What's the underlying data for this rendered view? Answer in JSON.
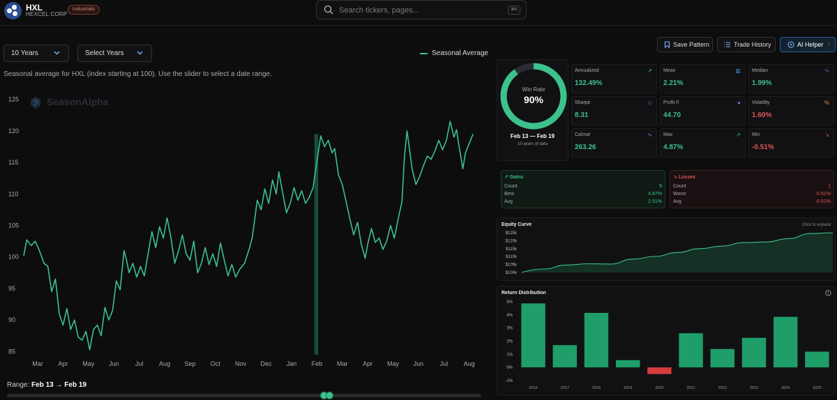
{
  "header": {
    "ticker": "HXL",
    "company": "HEXCEL CORP",
    "sector_badge": "Industrials",
    "search_placeholder": "Search tickers, pages...",
    "shortcut": "⌘K"
  },
  "controls": {
    "period_select": "10 Years",
    "years_select": "Select Years",
    "legend_label": "Seasonal Average",
    "description": "Seasonal average for HXL (index starting at 100). Use the slider to select a date range.",
    "watermark": "SeasonAlpha",
    "range_label": "Range:",
    "range_value": "Feb 13 → Feb 19"
  },
  "toolbar": {
    "save_pattern": "Save Pattern",
    "trade_history": "Trade History",
    "ai_helper": "AI Helper"
  },
  "win_rate": {
    "label": "Win Rate",
    "value": "90%",
    "fraction": 0.9,
    "range": "Feb 13 — Feb 19",
    "sub": "10 years of data"
  },
  "stats": [
    {
      "name": "Annualized",
      "value": "132.49%",
      "tone": "g",
      "icon": "trend-up-icon",
      "glyph": "↗",
      "color": "#3cc28c"
    },
    {
      "name": "Mean",
      "value": "2.21%",
      "tone": "g",
      "icon": "bar-chart-icon",
      "glyph": "▥",
      "color": "#4a90d9"
    },
    {
      "name": "Median",
      "value": "1.99%",
      "tone": "g",
      "icon": "pulse-icon",
      "glyph": "∿",
      "color": "#4a90d9"
    },
    {
      "name": "Sharpe",
      "value": "8.31",
      "tone": "g",
      "icon": "shield-icon",
      "glyph": "◇",
      "color": "#4a90d9"
    },
    {
      "name": "Profit F.",
      "value": "44.70",
      "tone": "g",
      "icon": "dot-icon",
      "glyph": "●",
      "color": "#9b59b6"
    },
    {
      "name": "Volatility",
      "value": "1.60%",
      "tone": "r",
      "icon": "percent-icon",
      "glyph": "%",
      "color": "#e08a3c"
    },
    {
      "name": "Calmar",
      "value": "263.26",
      "tone": "g",
      "icon": "activity-icon",
      "glyph": "∿",
      "color": "#4a90d9"
    },
    {
      "name": "Max",
      "value": "4.87%",
      "tone": "g",
      "icon": "trend-up-icon",
      "glyph": "↗",
      "color": "#3cc28c"
    },
    {
      "name": "Min",
      "value": "-0.51%",
      "tone": "r",
      "icon": "trend-down-icon",
      "glyph": "↘",
      "color": "#e05555"
    }
  ],
  "gains": {
    "title": "Gains",
    "rows": [
      {
        "label": "Count",
        "value": "9"
      },
      {
        "label": "Best",
        "value": "4.87%"
      },
      {
        "label": "Avg",
        "value": "2.51%"
      }
    ]
  },
  "losses": {
    "title": "Losses",
    "rows": [
      {
        "label": "Count",
        "value": "1"
      },
      {
        "label": "Worst",
        "value": "-0.51%"
      },
      {
        "label": "Avg",
        "value": "-0.51%"
      }
    ]
  },
  "equity": {
    "title": "Equity Curve",
    "hint": "Click to expand",
    "y_ticks": [
      "$125k",
      "$120k",
      "$115k",
      "$110k",
      "$105k",
      "$100k"
    ],
    "y_min": 100000,
    "y_max": 125000,
    "values": [
      100000,
      102200,
      104700,
      105500,
      105300,
      108400,
      110100,
      112600,
      115000,
      116600,
      118800,
      119200,
      121300,
      124500,
      125000
    ]
  },
  "distribution": {
    "title": "Return Distribution",
    "y_ticks": [
      "5%",
      "4%",
      "3%",
      "2%",
      "1%",
      "0%",
      "-1%"
    ],
    "y_min": -1,
    "y_max": 5,
    "years": [
      "2016",
      "2017",
      "2018",
      "2019",
      "2020",
      "2021",
      "2022",
      "2023",
      "2024",
      "2025"
    ],
    "values": [
      4.87,
      1.7,
      4.15,
      0.55,
      -0.51,
      2.6,
      1.4,
      2.25,
      3.85,
      1.2
    ]
  },
  "chart_data": {
    "type": "line",
    "title": "",
    "series_name": "Seasonal Average",
    "xlabel": "",
    "ylabel": "",
    "x_ticks": [
      "Mar",
      "Apr",
      "May",
      "Jun",
      "Jul",
      "Aug",
      "Sep",
      "Oct",
      "Nov",
      "Dec",
      "Jan",
      "Feb",
      "Mar",
      "Apr",
      "May",
      "Jun",
      "Jul",
      "Aug"
    ],
    "y_ticks": [
      125,
      120,
      115,
      110,
      105,
      100,
      95,
      90,
      85
    ],
    "ylim": [
      84.5,
      125.5
    ],
    "x_range": [
      0,
      17.75
    ],
    "highlight": {
      "from": 11.45,
      "to": 11.6,
      "label": "Feb 13 - Feb 19"
    },
    "points": [
      [
        0,
        100.2
      ],
      [
        0.12,
        102.7
      ],
      [
        0.3,
        101.8
      ],
      [
        0.45,
        102.5
      ],
      [
        0.6,
        101.2
      ],
      [
        0.8,
        99.0
      ],
      [
        0.95,
        98.5
      ],
      [
        1.1,
        94.5
      ],
      [
        1.25,
        96.5
      ],
      [
        1.4,
        91.0
      ],
      [
        1.55,
        89.2
      ],
      [
        1.7,
        91.8
      ],
      [
        1.85,
        88.5
      ],
      [
        2.0,
        90.0
      ],
      [
        2.15,
        87.3
      ],
      [
        2.3,
        86.8
      ],
      [
        2.45,
        88.2
      ],
      [
        2.6,
        85.3
      ],
      [
        2.75,
        88.5
      ],
      [
        2.9,
        89.2
      ],
      [
        3.05,
        87.5
      ],
      [
        3.2,
        92.0
      ],
      [
        3.35,
        90.0
      ],
      [
        3.5,
        91.5
      ],
      [
        3.65,
        96.2
      ],
      [
        3.8,
        94.8
      ],
      [
        3.95,
        101.0
      ],
      [
        4.05,
        99.5
      ],
      [
        4.15,
        97.5
      ],
      [
        4.3,
        99.0
      ],
      [
        4.45,
        96.8
      ],
      [
        4.6,
        98.5
      ],
      [
        4.75,
        97.0
      ],
      [
        4.9,
        100.5
      ],
      [
        5.05,
        104.0
      ],
      [
        5.2,
        101.5
      ],
      [
        5.35,
        104.8
      ],
      [
        5.5,
        103.0
      ],
      [
        5.65,
        106.2
      ],
      [
        5.8,
        103.0
      ],
      [
        5.95,
        99.0
      ],
      [
        6.1,
        101.0
      ],
      [
        6.25,
        103.5
      ],
      [
        6.4,
        100.5
      ],
      [
        6.55,
        99.5
      ],
      [
        6.7,
        102.5
      ],
      [
        6.85,
        97.5
      ],
      [
        7.0,
        99.0
      ],
      [
        7.15,
        101.5
      ],
      [
        7.3,
        98.8
      ],
      [
        7.45,
        100.5
      ],
      [
        7.6,
        98.5
      ],
      [
        7.75,
        102.2
      ],
      [
        7.9,
        99.5
      ],
      [
        8.05,
        97.0
      ],
      [
        8.2,
        98.8
      ],
      [
        8.35,
        96.8
      ],
      [
        8.5,
        98.0
      ],
      [
        8.7,
        99.0
      ],
      [
        8.9,
        101.5
      ],
      [
        9.0,
        103.0
      ],
      [
        9.1,
        106.0
      ],
      [
        9.2,
        109.0
      ],
      [
        9.35,
        107.5
      ],
      [
        9.5,
        110.8
      ],
      [
        9.65,
        108.5
      ],
      [
        9.8,
        112.2
      ],
      [
        9.95,
        110.0
      ],
      [
        10.05,
        113.5
      ],
      [
        10.2,
        110.2
      ],
      [
        10.35,
        107.0
      ],
      [
        10.5,
        108.5
      ],
      [
        10.65,
        111.0
      ],
      [
        10.8,
        109.0
      ],
      [
        10.95,
        110.5
      ],
      [
        11.1,
        108.5
      ],
      [
        11.25,
        109.5
      ],
      [
        11.4,
        111.0
      ],
      [
        11.55,
        115.2
      ],
      [
        11.7,
        119.2
      ],
      [
        11.85,
        117.5
      ],
      [
        12.0,
        118.5
      ],
      [
        12.15,
        116.5
      ],
      [
        12.25,
        117.2
      ],
      [
        12.4,
        113.0
      ],
      [
        12.55,
        111.5
      ],
      [
        12.7,
        108.8
      ],
      [
        12.85,
        106.0
      ],
      [
        13.0,
        103.5
      ],
      [
        13.15,
        105.5
      ],
      [
        13.3,
        102.0
      ],
      [
        13.45,
        99.8
      ],
      [
        13.55,
        102.0
      ],
      [
        13.7,
        104.5
      ],
      [
        13.85,
        102.3
      ],
      [
        14.0,
        103.0
      ],
      [
        14.15,
        101.2
      ],
      [
        14.3,
        102.5
      ],
      [
        14.45,
        105.0
      ],
      [
        14.6,
        103.0
      ],
      [
        14.75,
        106.0
      ],
      [
        14.9,
        108.8
      ],
      [
        15.0,
        116.0
      ],
      [
        15.1,
        120.0
      ],
      [
        15.2,
        117.0
      ],
      [
        15.3,
        114.0
      ],
      [
        15.45,
        111.5
      ],
      [
        15.6,
        112.8
      ],
      [
        15.75,
        114.5
      ],
      [
        15.9,
        116.0
      ],
      [
        16.05,
        115.5
      ],
      [
        16.2,
        116.8
      ],
      [
        16.35,
        118.5
      ],
      [
        16.5,
        117.0
      ],
      [
        16.65,
        118.5
      ],
      [
        16.8,
        121.5
      ],
      [
        16.95,
        119.0
      ],
      [
        17.05,
        120.2
      ],
      [
        17.15,
        117.5
      ],
      [
        17.3,
        114.0
      ],
      [
        17.4,
        116.5
      ],
      [
        17.55,
        118.0
      ],
      [
        17.7,
        119.5
      ]
    ]
  }
}
